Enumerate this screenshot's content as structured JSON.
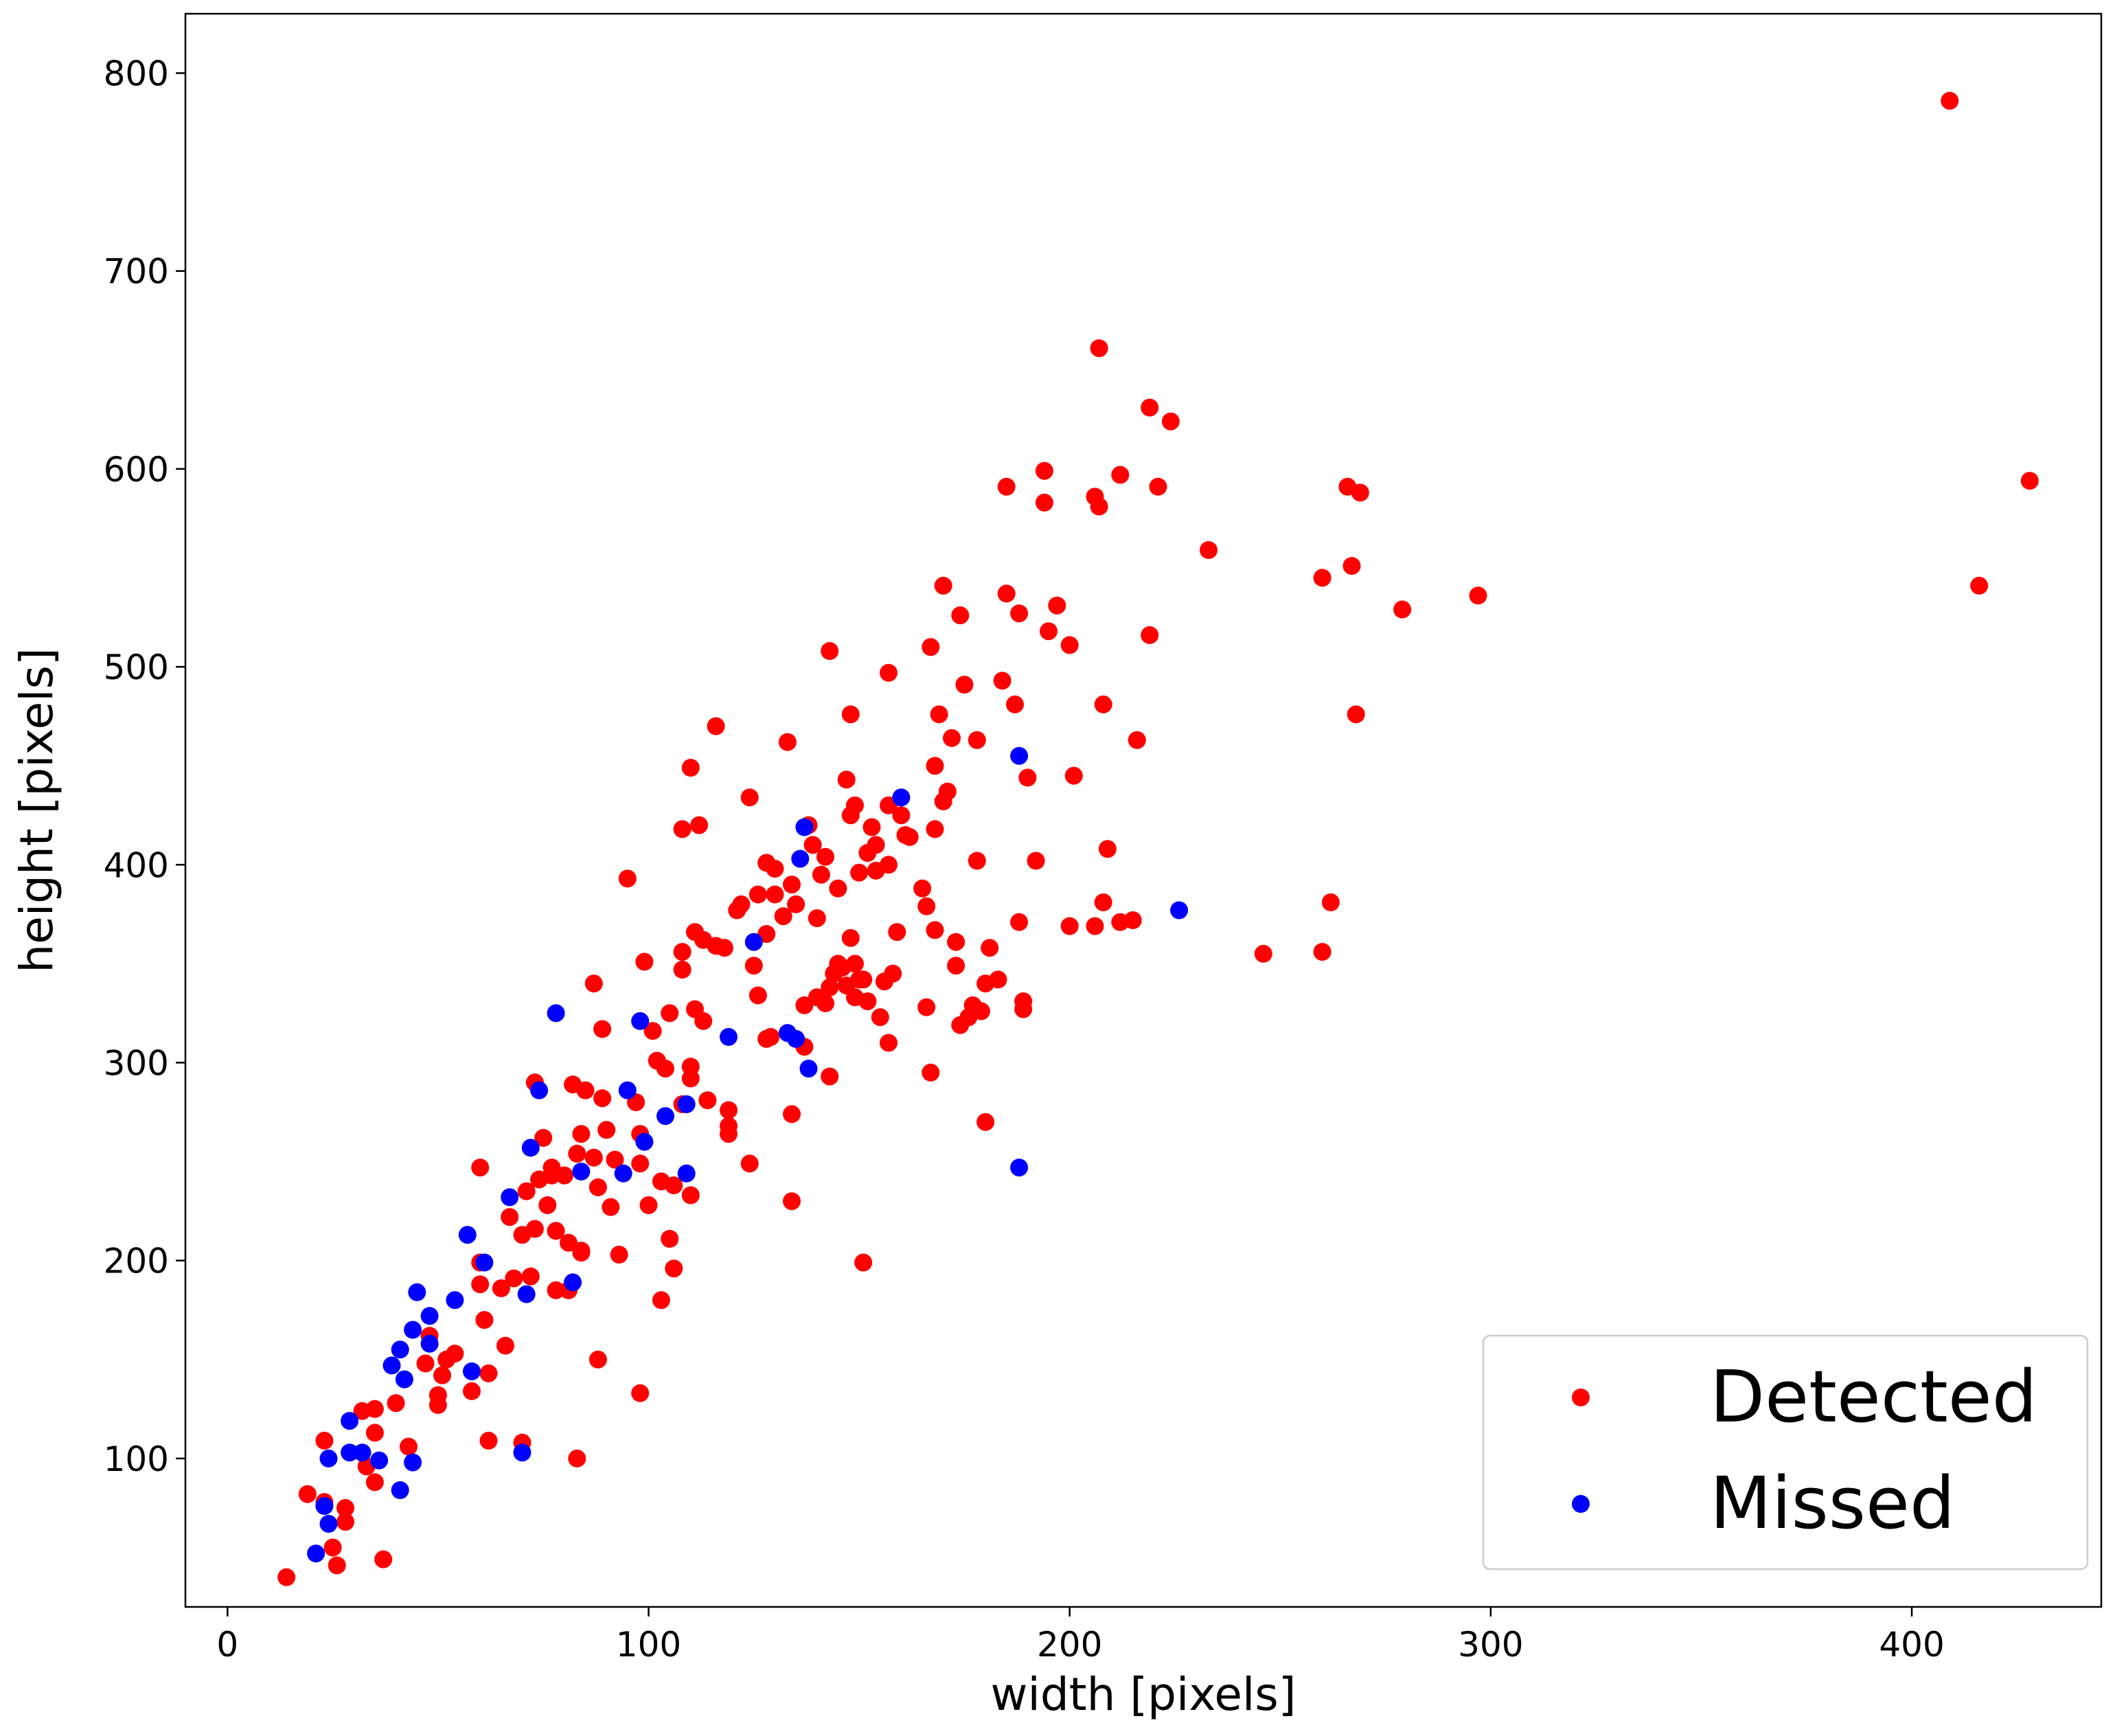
{
  "chart_data": {
    "type": "scatter",
    "xlabel": "width [pixels]",
    "ylabel": "height [pixels]",
    "xlim": [
      -10,
      445
    ],
    "ylim": [
      25,
      830
    ],
    "xticks": [
      0,
      100,
      200,
      300,
      400
    ],
    "yticks": [
      100,
      200,
      300,
      400,
      500,
      600,
      700,
      800
    ],
    "grid": false,
    "legend_position": "bottom-right",
    "series": [
      {
        "name": "Detected",
        "color": "#ff0000",
        "points": [
          [
            14,
            40
          ],
          [
            19,
            82
          ],
          [
            23,
            109
          ],
          [
            23,
            78
          ],
          [
            25,
            55
          ],
          [
            26,
            46
          ],
          [
            28,
            75
          ],
          [
            28,
            68
          ],
          [
            32,
            124
          ],
          [
            33,
            96
          ],
          [
            35,
            113
          ],
          [
            35,
            125
          ],
          [
            35,
            88
          ],
          [
            37,
            49
          ],
          [
            40,
            128
          ],
          [
            43,
            106
          ],
          [
            47,
            148
          ],
          [
            48,
            162
          ],
          [
            50,
            127
          ],
          [
            50,
            132
          ],
          [
            51,
            142
          ],
          [
            52,
            150
          ],
          [
            54,
            153
          ],
          [
            58,
            134
          ],
          [
            60,
            247
          ],
          [
            60,
            188
          ],
          [
            60,
            199
          ],
          [
            61,
            170
          ],
          [
            62,
            109
          ],
          [
            62,
            143
          ],
          [
            65,
            186
          ],
          [
            66,
            157
          ],
          [
            67,
            222
          ],
          [
            68,
            191
          ],
          [
            70,
            108
          ],
          [
            70,
            213
          ],
          [
            71,
            235
          ],
          [
            72,
            192
          ],
          [
            73,
            290
          ],
          [
            73,
            216
          ],
          [
            74,
            241
          ],
          [
            75,
            262
          ],
          [
            76,
            228
          ],
          [
            77,
            247
          ],
          [
            77,
            243
          ],
          [
            78,
            185
          ],
          [
            78,
            215
          ],
          [
            80,
            243
          ],
          [
            81,
            209
          ],
          [
            81,
            185
          ],
          [
            82,
            289
          ],
          [
            83,
            100
          ],
          [
            83,
            254
          ],
          [
            84,
            205
          ],
          [
            84,
            204
          ],
          [
            84,
            264
          ],
          [
            85,
            286
          ],
          [
            87,
            340
          ],
          [
            87,
            252
          ],
          [
            88,
            150
          ],
          [
            88,
            237
          ],
          [
            89,
            282
          ],
          [
            89,
            317
          ],
          [
            90,
            266
          ],
          [
            91,
            227
          ],
          [
            92,
            251
          ],
          [
            93,
            203
          ],
          [
            95,
            393
          ],
          [
            97,
            280
          ],
          [
            98,
            249
          ],
          [
            98,
            264
          ],
          [
            98,
            133
          ],
          [
            99,
            351
          ],
          [
            100,
            228
          ],
          [
            101,
            316
          ],
          [
            102,
            301
          ],
          [
            103,
            180
          ],
          [
            103,
            240
          ],
          [
            104,
            297
          ],
          [
            105,
            211
          ],
          [
            105,
            325
          ],
          [
            106,
            196
          ],
          [
            106,
            238
          ],
          [
            108,
            279
          ],
          [
            108,
            356
          ],
          [
            108,
            347
          ],
          [
            108,
            418
          ],
          [
            110,
            292
          ],
          [
            110,
            298
          ],
          [
            110,
            449
          ],
          [
            110,
            233
          ],
          [
            111,
            327
          ],
          [
            111,
            366
          ],
          [
            112,
            420
          ],
          [
            113,
            362
          ],
          [
            113,
            321
          ],
          [
            114,
            281
          ],
          [
            116,
            470
          ],
          [
            116,
            359
          ],
          [
            118,
            358
          ],
          [
            119,
            276
          ],
          [
            119,
            264
          ],
          [
            119,
            268
          ],
          [
            121,
            377
          ],
          [
            122,
            380
          ],
          [
            124,
            249
          ],
          [
            124,
            434
          ],
          [
            125,
            349
          ],
          [
            126,
            334
          ],
          [
            126,
            385
          ],
          [
            128,
            365
          ],
          [
            128,
            312
          ],
          [
            128,
            401
          ],
          [
            129,
            313
          ],
          [
            130,
            385
          ],
          [
            130,
            398
          ],
          [
            132,
            374
          ],
          [
            133,
            462
          ],
          [
            134,
            230
          ],
          [
            134,
            390
          ],
          [
            134,
            274
          ],
          [
            135,
            380
          ],
          [
            137,
            329
          ],
          [
            137,
            308
          ],
          [
            138,
            420
          ],
          [
            139,
            410
          ],
          [
            140,
            333
          ],
          [
            140,
            373
          ],
          [
            141,
            395
          ],
          [
            142,
            404
          ],
          [
            142,
            330
          ],
          [
            143,
            508
          ],
          [
            143,
            293
          ],
          [
            143,
            338
          ],
          [
            144,
            345
          ],
          [
            145,
            388
          ],
          [
            145,
            350
          ],
          [
            146,
            348
          ],
          [
            147,
            443
          ],
          [
            147,
            339
          ],
          [
            148,
            363
          ],
          [
            148,
            425
          ],
          [
            148,
            476
          ],
          [
            149,
            430
          ],
          [
            149,
            333
          ],
          [
            149,
            350
          ],
          [
            150,
            396
          ],
          [
            150,
            342
          ],
          [
            151,
            199
          ],
          [
            151,
            342
          ],
          [
            152,
            406
          ],
          [
            152,
            331
          ],
          [
            153,
            419
          ],
          [
            154,
            410
          ],
          [
            154,
            397
          ],
          [
            155,
            323
          ],
          [
            156,
            341
          ],
          [
            157,
            310
          ],
          [
            157,
            430
          ],
          [
            157,
            400
          ],
          [
            157,
            497
          ],
          [
            158,
            345
          ],
          [
            159,
            366
          ],
          [
            160,
            425
          ],
          [
            161,
            415
          ],
          [
            162,
            414
          ],
          [
            165,
            388
          ],
          [
            166,
            379
          ],
          [
            166,
            328
          ],
          [
            167,
            510
          ],
          [
            167,
            295
          ],
          [
            168,
            418
          ],
          [
            168,
            450
          ],
          [
            168,
            367
          ],
          [
            169,
            476
          ],
          [
            170,
            541
          ],
          [
            170,
            432
          ],
          [
            171,
            437
          ],
          [
            172,
            464
          ],
          [
            173,
            349
          ],
          [
            173,
            361
          ],
          [
            174,
            526
          ],
          [
            174,
            319
          ],
          [
            175,
            491
          ],
          [
            176,
            323
          ],
          [
            177,
            329
          ],
          [
            178,
            463
          ],
          [
            178,
            402
          ],
          [
            179,
            326
          ],
          [
            180,
            340
          ],
          [
            180,
            270
          ],
          [
            181,
            358
          ],
          [
            183,
            342
          ],
          [
            184,
            493
          ],
          [
            185,
            591
          ],
          [
            185,
            537
          ],
          [
            187,
            481
          ],
          [
            188,
            371
          ],
          [
            188,
            527
          ],
          [
            189,
            331
          ],
          [
            189,
            327
          ],
          [
            190,
            444
          ],
          [
            192,
            402
          ],
          [
            194,
            599
          ],
          [
            194,
            583
          ],
          [
            195,
            518
          ],
          [
            197,
            531
          ],
          [
            200,
            369
          ],
          [
            200,
            511
          ],
          [
            201,
            445
          ],
          [
            206,
            586
          ],
          [
            206,
            369
          ],
          [
            207,
            661
          ],
          [
            207,
            581
          ],
          [
            208,
            481
          ],
          [
            208,
            381
          ],
          [
            209,
            408
          ],
          [
            212,
            597
          ],
          [
            212,
            371
          ],
          [
            215,
            372
          ],
          [
            216,
            463
          ],
          [
            219,
            631
          ],
          [
            219,
            516
          ],
          [
            221,
            591
          ],
          [
            224,
            624
          ],
          [
            233,
            559
          ],
          [
            246,
            355
          ],
          [
            260,
            545
          ],
          [
            260,
            356
          ],
          [
            262,
            381
          ],
          [
            266,
            591
          ],
          [
            267,
            551
          ],
          [
            268,
            476
          ],
          [
            269,
            588
          ],
          [
            279,
            529
          ],
          [
            297,
            536
          ],
          [
            409,
            786
          ],
          [
            416,
            541
          ],
          [
            428,
            594
          ]
        ]
      },
      {
        "name": "Missed",
        "color": "#0000ff",
        "points": [
          [
            21,
            52
          ],
          [
            23,
            76
          ],
          [
            24,
            67
          ],
          [
            24,
            100
          ],
          [
            29,
            119
          ],
          [
            29,
            103
          ],
          [
            32,
            103
          ],
          [
            36,
            99
          ],
          [
            39,
            147
          ],
          [
            41,
            155
          ],
          [
            41,
            84
          ],
          [
            42,
            140
          ],
          [
            44,
            98
          ],
          [
            44,
            165
          ],
          [
            45,
            184
          ],
          [
            48,
            172
          ],
          [
            48,
            158
          ],
          [
            54,
            180
          ],
          [
            57,
            213
          ],
          [
            58,
            144
          ],
          [
            61,
            199
          ],
          [
            67,
            232
          ],
          [
            70,
            103
          ],
          [
            71,
            183
          ],
          [
            72,
            257
          ],
          [
            74,
            286
          ],
          [
            78,
            325
          ],
          [
            82,
            189
          ],
          [
            84,
            245
          ],
          [
            94,
            244
          ],
          [
            95,
            286
          ],
          [
            98,
            321
          ],
          [
            99,
            260
          ],
          [
            104,
            273
          ],
          [
            109,
            244
          ],
          [
            109,
            279
          ],
          [
            119,
            313
          ],
          [
            125,
            361
          ],
          [
            133,
            315
          ],
          [
            135,
            312
          ],
          [
            136,
            403
          ],
          [
            137,
            419
          ],
          [
            138,
            297
          ],
          [
            160,
            434
          ],
          [
            188,
            455
          ],
          [
            188,
            247
          ],
          [
            226,
            377
          ]
        ]
      }
    ]
  }
}
